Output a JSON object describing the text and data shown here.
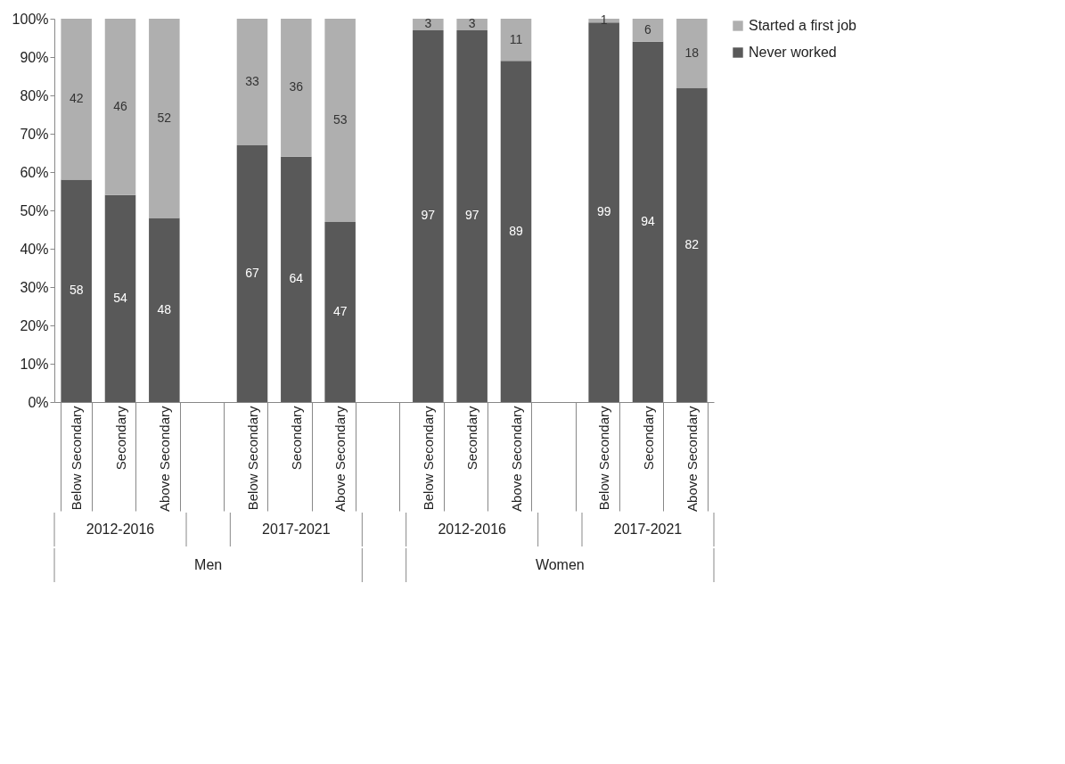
{
  "chart_data": {
    "type": "bar",
    "stacked": true,
    "data_labels": true,
    "legend": "right",
    "grid": false,
    "categories": [
      "Below Secondary",
      "Secondary",
      "Above Secondary",
      null,
      "Below Secondary",
      "Secondary",
      "Above Secondary",
      null,
      "Below Secondary",
      "Secondary",
      "Above Secondary",
      null,
      "Below Secondary",
      "Secondary",
      "Above Secondary"
    ],
    "series": [
      {
        "name": "Never worked",
        "color": "#595959",
        "values": [
          58,
          54,
          48,
          null,
          67,
          64,
          47,
          null,
          97,
          97,
          89,
          null,
          99,
          94,
          82
        ]
      },
      {
        "name": "Started a first job",
        "color": "#afafaf",
        "values": [
          42,
          46,
          52,
          null,
          33,
          36,
          53,
          null,
          3,
          3,
          11,
          null,
          1,
          6,
          18
        ]
      }
    ],
    "ylim": [
      0,
      100
    ],
    "yticks": [
      {
        "value": 0,
        "label": "0%"
      },
      {
        "value": 10,
        "label": "10%"
      },
      {
        "value": 20,
        "label": "20%"
      },
      {
        "value": 30,
        "label": "30%"
      },
      {
        "value": 40,
        "label": "40%"
      },
      {
        "value": 50,
        "label": "50%"
      },
      {
        "value": 60,
        "label": "60%"
      },
      {
        "value": 70,
        "label": "70%"
      },
      {
        "value": 80,
        "label": "80%"
      },
      {
        "value": 90,
        "label": "90%"
      },
      {
        "value": 100,
        "label": "100%"
      }
    ],
    "annotations": [
      "2012-2016",
      "2017-2021",
      "2012-2016",
      "2017-2021",
      "Men",
      "Women"
    ]
  }
}
